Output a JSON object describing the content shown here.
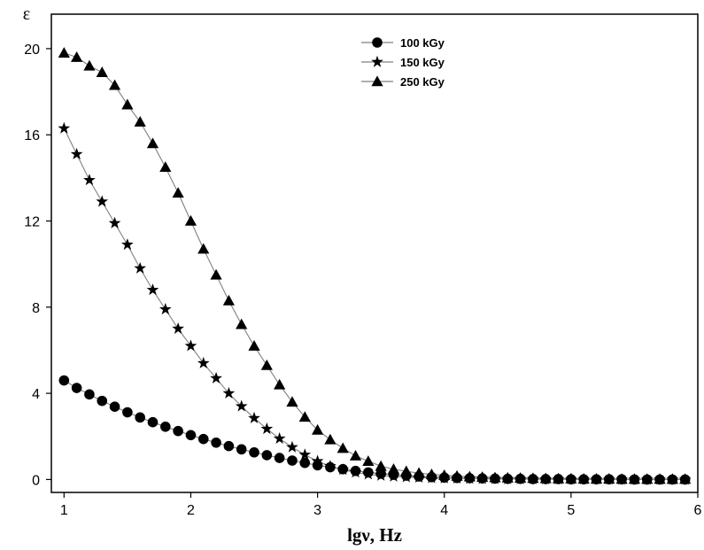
{
  "chart_data": {
    "type": "scatter",
    "title": "",
    "xlabel": "lgν, Hz",
    "ylabel": "ε",
    "xlim": [
      0.9,
      6.0
    ],
    "ylim": [
      -0.6,
      21.6
    ],
    "xticks": [
      1,
      2,
      3,
      4,
      5,
      6
    ],
    "yticks": [
      0,
      4,
      8,
      12,
      16,
      20
    ],
    "grid": false,
    "legend_position": "top-center",
    "line_color": "#7f7f7f",
    "marker_color": "#000000",
    "series": [
      {
        "name": "100 kGy",
        "marker": "circle",
        "x": [
          1.0,
          1.1,
          1.2,
          1.3,
          1.4,
          1.5,
          1.6,
          1.7,
          1.8,
          1.9,
          2.0,
          2.1,
          2.2,
          2.3,
          2.4,
          2.5,
          2.6,
          2.7,
          2.8,
          2.9,
          3.0,
          3.1,
          3.2,
          3.3,
          3.4,
          3.5,
          3.6,
          3.7,
          3.8,
          3.9,
          4.0,
          4.1,
          4.2,
          4.3,
          4.4,
          4.5,
          4.6,
          4.7,
          4.8,
          4.9,
          5.0,
          5.1,
          5.2,
          5.3,
          5.4,
          5.5,
          5.6,
          5.7,
          5.8,
          5.9
        ],
        "y": [
          4.6,
          4.25,
          3.95,
          3.65,
          3.38,
          3.12,
          2.88,
          2.66,
          2.45,
          2.25,
          2.06,
          1.88,
          1.71,
          1.55,
          1.4,
          1.26,
          1.13,
          1.0,
          0.88,
          0.77,
          0.66,
          0.57,
          0.48,
          0.4,
          0.33,
          0.27,
          0.22,
          0.18,
          0.14,
          0.11,
          0.09,
          0.07,
          0.06,
          0.05,
          0.04,
          0.03,
          0.03,
          0.02,
          0.02,
          0.02,
          0.01,
          0.01,
          0.01,
          0.01,
          0.01,
          0.0,
          0.0,
          0.0,
          0.0,
          0.0
        ]
      },
      {
        "name": "150 kGy",
        "marker": "star",
        "x": [
          1.0,
          1.1,
          1.2,
          1.3,
          1.4,
          1.5,
          1.6,
          1.7,
          1.8,
          1.9,
          2.0,
          2.1,
          2.2,
          2.3,
          2.4,
          2.5,
          2.6,
          2.7,
          2.8,
          2.9,
          3.0,
          3.1,
          3.2,
          3.3,
          3.4,
          3.5,
          3.6,
          3.7,
          3.8,
          3.9,
          4.0,
          4.1,
          4.2,
          4.3,
          4.4,
          4.5,
          4.6,
          4.7,
          4.8,
          4.9,
          5.0,
          5.1,
          5.2,
          5.3,
          5.4,
          5.5,
          5.6,
          5.7,
          5.8,
          5.9
        ],
        "y": [
          16.3,
          15.1,
          13.9,
          12.9,
          11.9,
          10.9,
          9.8,
          8.8,
          7.9,
          7.0,
          6.2,
          5.4,
          4.7,
          4.0,
          3.4,
          2.85,
          2.35,
          1.9,
          1.5,
          1.15,
          0.85,
          0.62,
          0.45,
          0.33,
          0.24,
          0.18,
          0.14,
          0.11,
          0.09,
          0.07,
          0.06,
          0.05,
          0.04,
          0.03,
          0.03,
          0.02,
          0.02,
          0.02,
          0.01,
          0.01,
          0.01,
          0.01,
          0.01,
          0.01,
          0.0,
          0.0,
          0.0,
          0.0,
          0.0,
          0.0
        ]
      },
      {
        "name": "250 kGy",
        "marker": "triangle",
        "x": [
          1.0,
          1.1,
          1.2,
          1.3,
          1.4,
          1.5,
          1.6,
          1.7,
          1.8,
          1.9,
          2.0,
          2.1,
          2.2,
          2.3,
          2.4,
          2.5,
          2.6,
          2.7,
          2.8,
          2.9,
          3.0,
          3.1,
          3.2,
          3.3,
          3.4,
          3.5,
          3.6,
          3.7,
          3.8,
          3.9,
          4.0,
          4.1,
          4.2,
          4.3,
          4.4,
          4.5,
          4.6,
          4.7,
          4.8,
          4.9,
          5.0,
          5.1,
          5.2,
          5.3,
          5.4,
          5.5,
          5.6,
          5.7,
          5.8,
          5.9
        ],
        "y": [
          19.8,
          19.6,
          19.2,
          18.9,
          18.3,
          17.4,
          16.6,
          15.6,
          14.5,
          13.3,
          12.0,
          10.7,
          9.5,
          8.3,
          7.2,
          6.2,
          5.3,
          4.4,
          3.6,
          2.9,
          2.3,
          1.85,
          1.45,
          1.1,
          0.85,
          0.62,
          0.48,
          0.38,
          0.3,
          0.24,
          0.2,
          0.16,
          0.13,
          0.11,
          0.09,
          0.08,
          0.07,
          0.06,
          0.05,
          0.04,
          0.04,
          0.03,
          0.03,
          0.03,
          0.02,
          0.02,
          0.02,
          0.02,
          0.02,
          0.02
        ]
      }
    ]
  }
}
